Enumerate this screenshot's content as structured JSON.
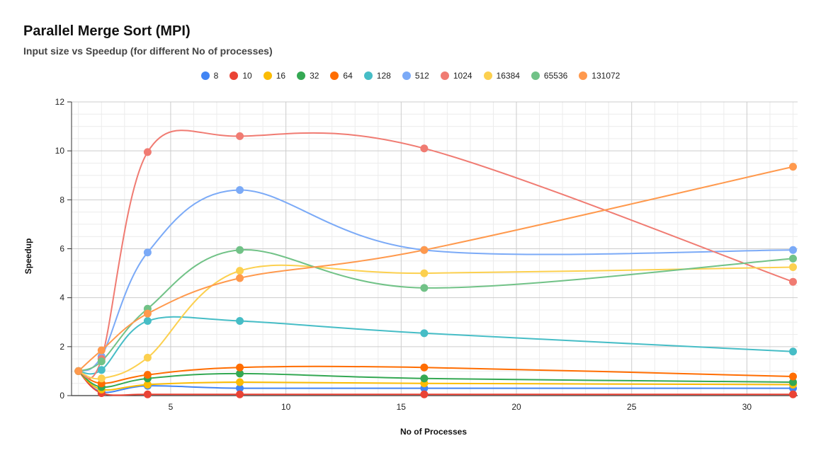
{
  "chart_data": {
    "type": "line",
    "title": "Parallel Merge Sort (MPI)",
    "subtitle": "Input size vs Speedup (for different No of processes)",
    "xlabel": "No of Processes",
    "ylabel": "Speedup",
    "xlim": [
      0.7,
      32.2
    ],
    "ylim": [
      0,
      12
    ],
    "x_ticks": [
      5,
      10,
      15,
      20,
      25,
      30
    ],
    "y_ticks": [
      0,
      2,
      4,
      6,
      8,
      10,
      12
    ],
    "grid": true,
    "legend_position": "top",
    "x": [
      1,
      2,
      4,
      8,
      16,
      32
    ],
    "series": [
      {
        "name": "8",
        "color": "#4285f4",
        "values": [
          1,
          0.15,
          0.4,
          0.3,
          0.3,
          0.3
        ]
      },
      {
        "name": "10",
        "color": "#ea4335",
        "values": [
          1,
          0.1,
          0.05,
          0.05,
          0.05,
          0.05
        ]
      },
      {
        "name": "16",
        "color": "#fbbc04",
        "values": [
          1,
          0.25,
          0.45,
          0.55,
          0.5,
          0.45
        ]
      },
      {
        "name": "32",
        "color": "#34a853",
        "values": [
          1,
          0.35,
          0.7,
          0.9,
          0.7,
          0.55
        ]
      },
      {
        "name": "64",
        "color": "#ff6d01",
        "values": [
          1,
          0.5,
          0.85,
          1.15,
          1.15,
          0.78
        ]
      },
      {
        "name": "128",
        "color": "#46bdc6",
        "values": [
          1,
          1.05,
          3.05,
          3.05,
          2.55,
          1.8
        ]
      },
      {
        "name": "512",
        "color": "#7baaf7",
        "values": [
          1,
          1.6,
          5.85,
          8.4,
          5.95,
          5.95
        ]
      },
      {
        "name": "1024",
        "color": "#f07b72",
        "values": [
          1,
          1.5,
          9.95,
          10.6,
          10.1,
          4.65
        ]
      },
      {
        "name": "16384",
        "color": "#fcd04f",
        "values": [
          1,
          0.7,
          1.55,
          5.1,
          5.0,
          5.25
        ]
      },
      {
        "name": "65536",
        "color": "#71c287",
        "values": [
          1,
          1.4,
          3.55,
          5.95,
          4.4,
          5.6
        ]
      },
      {
        "name": "131072",
        "color": "#ff994d",
        "values": [
          1,
          1.85,
          3.35,
          4.8,
          5.95,
          9.35
        ]
      }
    ]
  }
}
